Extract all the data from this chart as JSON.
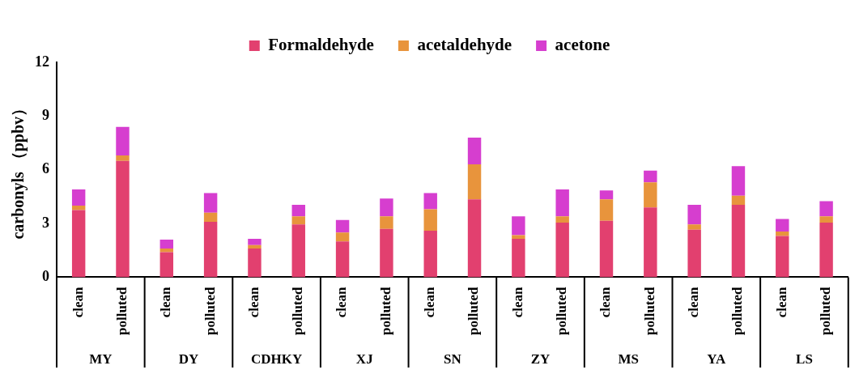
{
  "chart_data": {
    "type": "bar",
    "stacked": true,
    "ylabel": "carbonyls （ppbv）",
    "categories": [
      "clean",
      "polluted",
      "clean",
      "polluted",
      "clean",
      "polluted",
      "clean",
      "polluted",
      "clean",
      "polluted",
      "clean",
      "polluted",
      "clean",
      "polluted",
      "clean",
      "polluted",
      "clean",
      "polluted"
    ],
    "annotations": [
      "MY",
      "DY",
      "CDHKY",
      "XJ",
      "SN",
      "ZY",
      "MS",
      "YA",
      "LS"
    ],
    "series": [
      {
        "name": "Formaldehyde",
        "color": "#e2406f",
        "values": [
          3.75,
          6.5,
          1.4,
          3.1,
          1.6,
          2.95,
          2.0,
          2.7,
          2.6,
          4.35,
          2.15,
          3.05,
          3.15,
          3.9,
          2.65,
          4.05,
          2.3,
          3.05
        ]
      },
      {
        "name": "acetaldehyde",
        "color": "#e8943c",
        "values": [
          0.25,
          0.3,
          0.2,
          0.5,
          0.2,
          0.45,
          0.5,
          0.7,
          1.2,
          1.95,
          0.2,
          0.35,
          1.2,
          1.4,
          0.3,
          0.5,
          0.25,
          0.35
        ]
      },
      {
        "name": "acetone",
        "color": "#d63ecf",
        "values": [
          0.9,
          1.6,
          0.5,
          1.1,
          0.35,
          0.65,
          0.7,
          1.0,
          0.9,
          1.5,
          1.05,
          1.5,
          0.5,
          0.65,
          1.1,
          1.65,
          0.7,
          0.85
        ]
      }
    ],
    "ylim": [
      0,
      12
    ],
    "yticks": [
      0,
      3,
      6,
      9,
      12
    ],
    "grid": false,
    "legend": "top"
  }
}
